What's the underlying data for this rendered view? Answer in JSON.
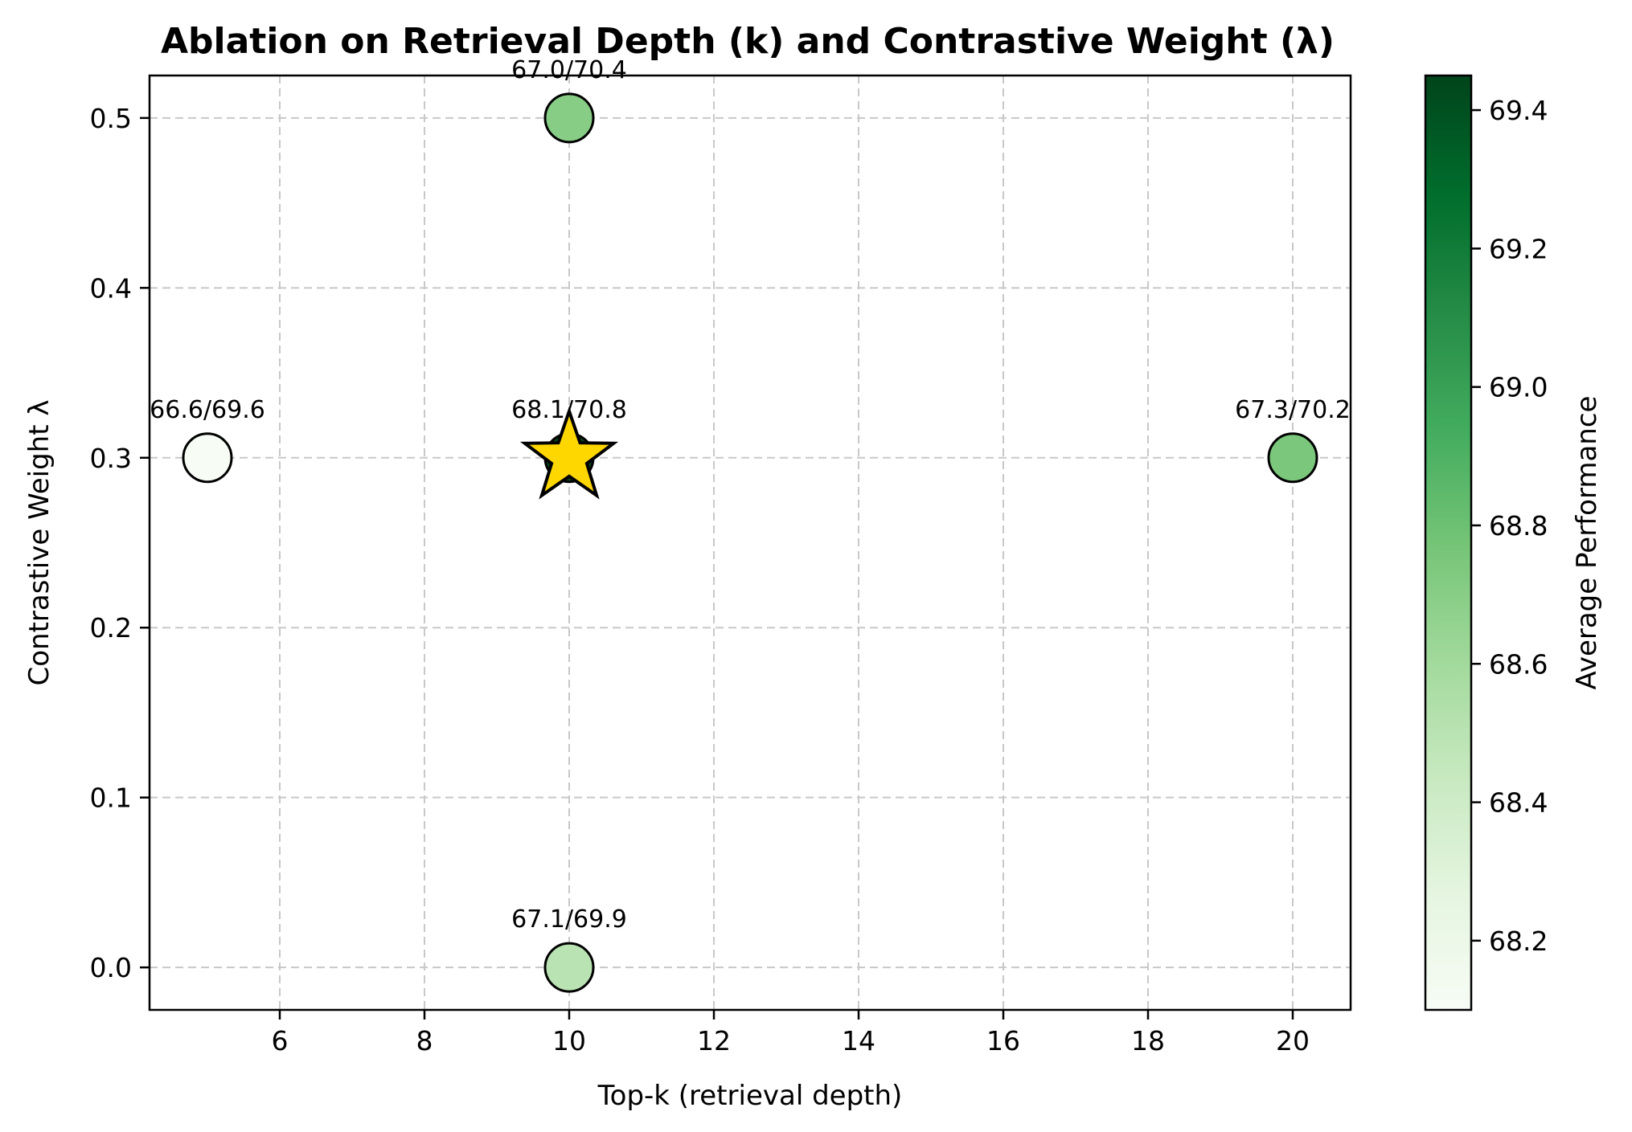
{
  "chart_data": {
    "type": "scatter",
    "title": "Ablation on Retrieval Depth (k) and Contrastive Weight (λ)",
    "xlabel": "Top-k (retrieval depth)",
    "ylabel": "Contrastive Weight λ",
    "xlim": [
      4.2,
      20.8
    ],
    "ylim": [
      -0.025,
      0.525
    ],
    "xticks": [
      6,
      8,
      10,
      12,
      14,
      16,
      18,
      20
    ],
    "yticks": [
      0.0,
      0.1,
      0.2,
      0.3,
      0.4,
      0.5
    ],
    "grid": true,
    "points": [
      {
        "x": 5,
        "y": 0.3,
        "value": 68.1,
        "label": "66.6/69.6"
      },
      {
        "x": 10,
        "y": 0.0,
        "value": 68.5,
        "label": "67.1/69.9"
      },
      {
        "x": 10,
        "y": 0.3,
        "value": 69.45,
        "label": "68.1/70.8",
        "best": true
      },
      {
        "x": 10,
        "y": 0.5,
        "value": 68.7,
        "label": "67.0/70.4"
      },
      {
        "x": 20,
        "y": 0.3,
        "value": 68.75,
        "label": "67.3/70.2"
      }
    ],
    "best_marker_color": "#FFD700",
    "colorbar": {
      "label": "Average Performance",
      "range": [
        68.1,
        69.45
      ],
      "ticks": [
        68.2,
        68.4,
        68.6,
        68.8,
        69.0,
        69.2,
        69.4
      ],
      "colormap": "Greens",
      "stops": [
        "#f7fcf5",
        "#e5f5e0",
        "#c7e9c0",
        "#a1d99b",
        "#74c476",
        "#41ab5d",
        "#238b45",
        "#006d2c",
        "#00441b"
      ]
    }
  }
}
